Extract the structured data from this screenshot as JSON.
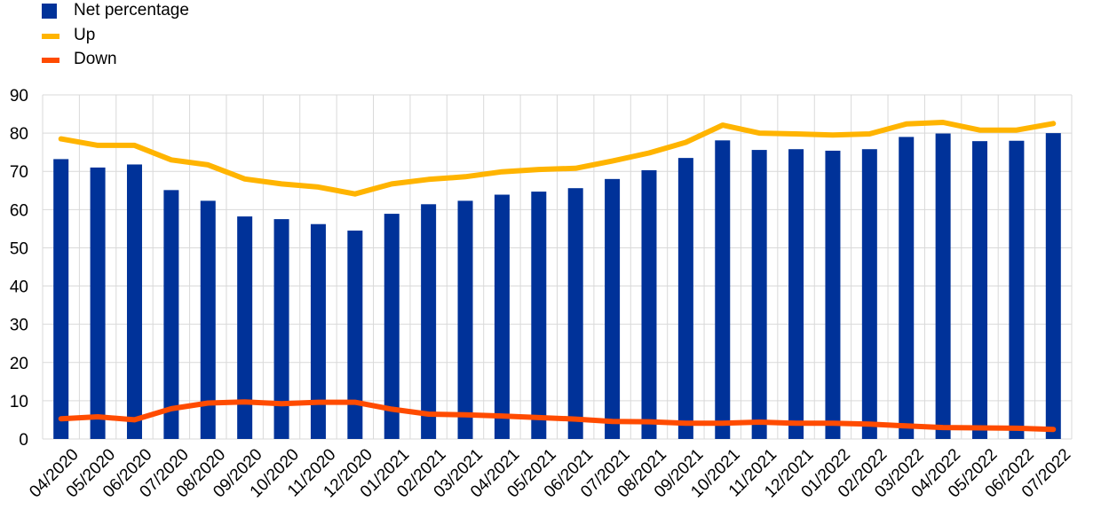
{
  "legend": {
    "net": "Net percentage",
    "up": "Up",
    "down": "Down"
  },
  "colors": {
    "net": "#003299",
    "up": "#ffb400",
    "down": "#ff4b00",
    "grid": "#d9d9d9"
  },
  "chart_data": {
    "type": "bar",
    "title": "",
    "xlabel": "",
    "ylabel": "",
    "ylim": [
      0,
      90
    ],
    "yticks": [
      0,
      10,
      20,
      30,
      40,
      50,
      60,
      70,
      80,
      90
    ],
    "grid": true,
    "legend_position": "top-left",
    "categories": [
      "04/2020",
      "05/2020",
      "06/2020",
      "07/2020",
      "08/2020",
      "09/2020",
      "10/2020",
      "11/2020",
      "12/2020",
      "01/2021",
      "02/2021",
      "03/2021",
      "04/2021",
      "05/2021",
      "06/2021",
      "07/2021",
      "08/2021",
      "09/2021",
      "10/2021",
      "11/2021",
      "12/2021",
      "01/2022",
      "02/2022",
      "03/2022",
      "04/2022",
      "05/2022",
      "06/2022",
      "07/2022"
    ],
    "series": [
      {
        "name": "Net percentage",
        "type": "bar",
        "values": [
          73.2,
          71.0,
          71.8,
          65.1,
          62.3,
          58.2,
          57.5,
          56.2,
          54.5,
          58.9,
          61.4,
          62.3,
          63.9,
          64.7,
          65.6,
          68.0,
          70.3,
          73.5,
          78.1,
          75.6,
          75.8,
          75.4,
          75.8,
          79.0,
          79.9,
          77.9,
          78.0,
          80.0
        ]
      },
      {
        "name": "Up",
        "type": "line",
        "values": [
          78.5,
          76.8,
          76.8,
          73.0,
          71.7,
          68.0,
          66.7,
          65.9,
          64.1,
          66.7,
          67.9,
          68.6,
          69.9,
          70.5,
          70.8,
          72.7,
          74.8,
          77.6,
          82.1,
          80.0,
          79.8,
          79.5,
          79.8,
          82.4,
          82.8,
          80.8,
          80.8,
          82.5
        ]
      },
      {
        "name": "Down",
        "type": "line",
        "values": [
          5.3,
          5.8,
          5.0,
          7.9,
          9.4,
          9.7,
          9.2,
          9.6,
          9.6,
          7.8,
          6.5,
          6.3,
          6.0,
          5.6,
          5.2,
          4.6,
          4.5,
          4.1,
          4.1,
          4.4,
          4.1,
          4.1,
          3.9,
          3.4,
          3.0,
          2.9,
          2.8,
          2.5
        ]
      }
    ]
  }
}
